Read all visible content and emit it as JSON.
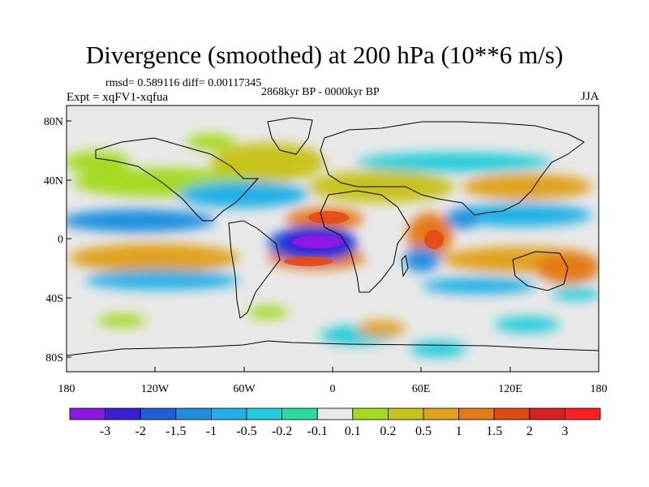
{
  "chart_data": {
    "type": "heatmap",
    "title": "Divergence (smoothed) at 200 hPa (10**6 m/s)",
    "subtitle_stats": "rmsd= 0.589116 diff= 0.00117345",
    "period": "2868kyr BP - 0000kyr BP",
    "experiment": "Expt = xqFV1-xqfua",
    "season": "JJA",
    "x_range": [
      -180,
      180
    ],
    "y_range": [
      -90,
      90
    ],
    "x_ticks": [
      {
        "value": -180,
        "label": "180"
      },
      {
        "value": -120,
        "label": "120W"
      },
      {
        "value": -60,
        "label": "60W"
      },
      {
        "value": 0,
        "label": "0"
      },
      {
        "value": 60,
        "label": "60E"
      },
      {
        "value": 120,
        "label": "120E"
      },
      {
        "value": 180,
        "label": "180"
      }
    ],
    "y_ticks": [
      {
        "value": 80,
        "label": "80N"
      },
      {
        "value": 40,
        "label": "40N"
      },
      {
        "value": 0,
        "label": "0"
      },
      {
        "value": -40,
        "label": "40S"
      },
      {
        "value": -80,
        "label": "80S"
      }
    ],
    "colorbar": {
      "levels": [
        "-3",
        "-2",
        "-1.5",
        "-1",
        "-0.5",
        "-0.2",
        "-0.1",
        "0.1",
        "0.2",
        "0.5",
        "1",
        "1.5",
        "2",
        "3"
      ],
      "colors": [
        "#8c17e6",
        "#3a1fd6",
        "#1f5fd9",
        "#1f8ee0",
        "#1fb0e6",
        "#21cdd9",
        "#2bd9a3",
        "#e8e8e8",
        "#a5da20",
        "#c7c31c",
        "#e0a21d",
        "#e47a18",
        "#e24a16",
        "#d91f1f",
        "#ff2020"
      ]
    },
    "features": [
      {
        "lon": -10,
        "lat": -3,
        "value": -3.2
      },
      {
        "lon": -5,
        "lat": 6,
        "value": 1.6
      },
      {
        "lon": -5,
        "lat": -12,
        "value": 1.7
      },
      {
        "lon": 62,
        "lat": 0,
        "value": 1.8
      },
      {
        "lon": 60,
        "lat": -12,
        "value": -1.3
      },
      {
        "lon": -125,
        "lat": 3,
        "value": -1.1
      },
      {
        "lon": -125,
        "lat": -12,
        "value": 1.0
      },
      {
        "lon": 150,
        "lat": -18,
        "value": 1.0
      },
      {
        "lon": 120,
        "lat": 15,
        "value": -0.8
      },
      {
        "lon": -30,
        "lat": 25,
        "value": -1.0
      }
    ]
  }
}
